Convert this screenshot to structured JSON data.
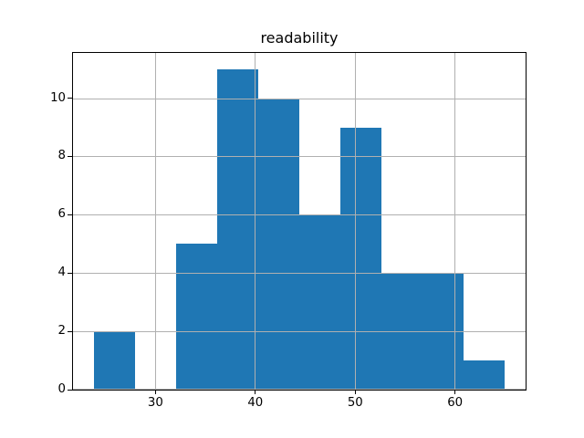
{
  "figure": {
    "background": "#ffffff"
  },
  "chart_data": {
    "type": "bar",
    "subtype": "histogram",
    "title": "readability",
    "xlabel": "",
    "ylabel": "",
    "bin_edges": [
      23.8,
      27.92,
      32.04,
      36.16,
      40.28,
      44.4,
      48.52,
      52.64,
      56.76,
      60.88,
      65.0
    ],
    "counts": [
      2,
      0,
      5,
      11,
      10,
      6,
      9,
      4,
      4,
      1
    ],
    "xticks": [
      30,
      40,
      50,
      60
    ],
    "yticks": [
      0,
      2,
      4,
      6,
      8,
      10
    ],
    "xlim": [
      21.74,
      67.06
    ],
    "ylim": [
      0,
      11.55
    ],
    "grid": "on",
    "legend": "none",
    "bar_color": "#1f77b4",
    "grid_color": "#b0b0b0",
    "axis_color": "#000000",
    "text_color": "#000000"
  }
}
